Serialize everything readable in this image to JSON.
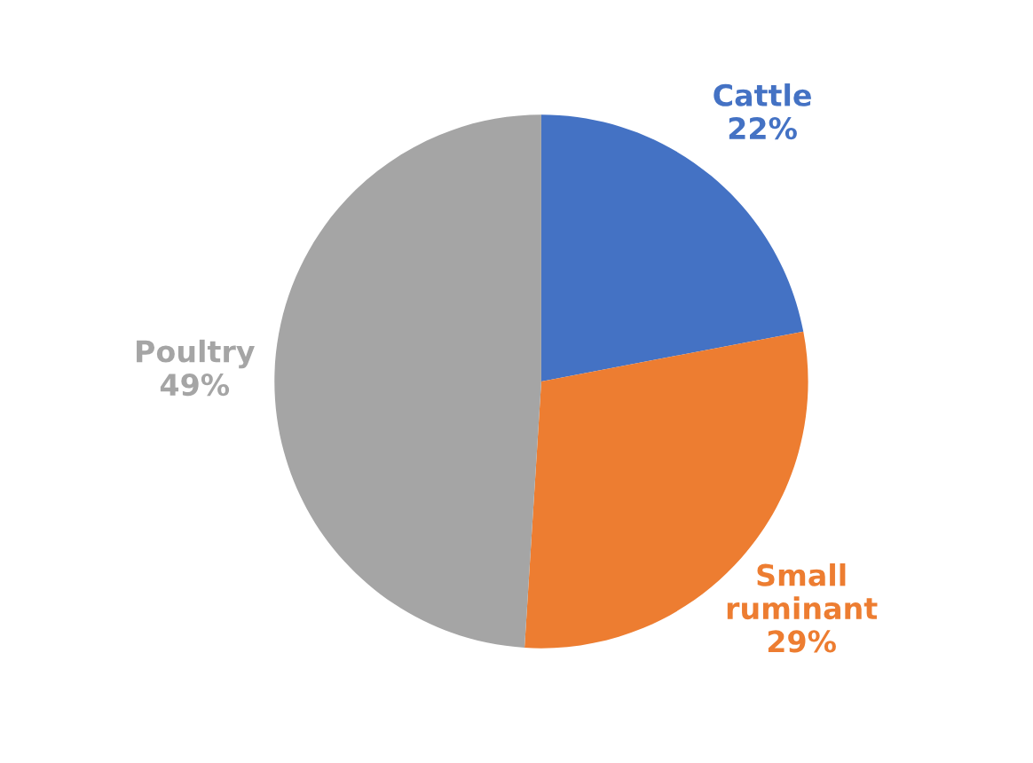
{
  "chart_data": {
    "type": "pie",
    "categories": [
      "Cattle",
      "Small ruminant",
      "Poultry"
    ],
    "values": [
      22,
      29,
      49
    ],
    "colors": [
      "#4472c4",
      "#ed7d31",
      "#a5a5a5"
    ],
    "value_labels": [
      "22%",
      "29%",
      "49%"
    ]
  }
}
